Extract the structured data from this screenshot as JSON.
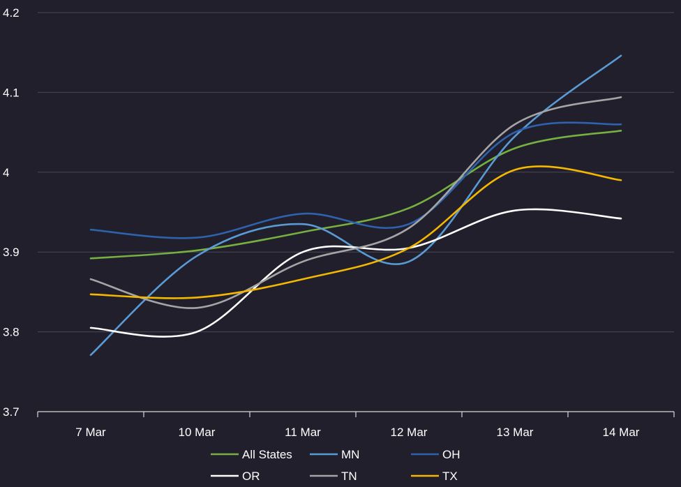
{
  "chart_data": {
    "type": "line",
    "title": "",
    "xlabel": "",
    "ylabel": "",
    "categories": [
      "7 Mar",
      "10 Mar",
      "11 Mar",
      "12 Mar",
      "13 Mar",
      "14 Mar"
    ],
    "ylim": [
      3.7,
      4.2
    ],
    "yticks": [
      "3.7",
      "3.8",
      "3.9",
      "4",
      "4.1",
      "4.2"
    ],
    "grid": "horizontal",
    "legend_position": "bottom",
    "series": [
      {
        "name": "All States",
        "color": "#76b041",
        "values": [
          3.892,
          3.902,
          3.925,
          3.955,
          4.03,
          4.052
        ]
      },
      {
        "name": "MN",
        "color": "#5b9bd5",
        "values": [
          3.771,
          3.895,
          3.935,
          3.888,
          4.045,
          4.146
        ]
      },
      {
        "name": "OH",
        "color": "#2e62ad",
        "values": [
          3.928,
          3.918,
          3.948,
          3.935,
          4.05,
          4.06
        ]
      },
      {
        "name": "OR",
        "color": "#ffffff",
        "values": [
          3.805,
          3.8,
          3.9,
          3.905,
          3.952,
          3.942
        ]
      },
      {
        "name": "TN",
        "color": "#a5a5a5",
        "values": [
          3.866,
          3.83,
          3.888,
          3.93,
          4.06,
          4.094
        ]
      },
      {
        "name": "TX",
        "color": "#f5b800",
        "values": [
          3.847,
          3.843,
          3.866,
          3.905,
          4.003,
          3.99
        ]
      }
    ]
  }
}
